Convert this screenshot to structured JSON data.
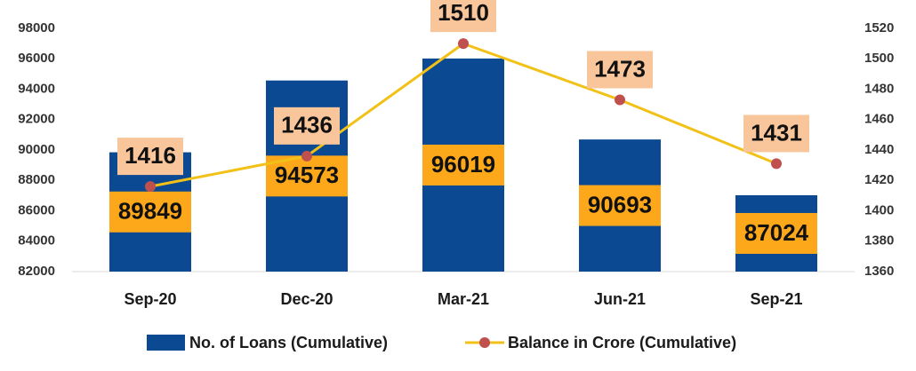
{
  "chart_data": {
    "type": "bar_line",
    "categories": [
      "Sep-20",
      "Dec-20",
      "Mar-21",
      "Jun-21",
      "Sep-21"
    ],
    "series": [
      {
        "name": "No. of Loans (Cumulative)",
        "type": "bar",
        "color": "#0b4a92",
        "values": [
          89849,
          94573,
          96019,
          90693,
          87024
        ]
      },
      {
        "name": "Balance in Crore (Cumulative)",
        "type": "line",
        "axis": "y2",
        "color": "#f2c118",
        "marker_color": "#c0504d",
        "values": [
          1416,
          1436,
          1510,
          1473,
          1431
        ]
      }
    ],
    "ylim": [
      82000,
      98000
    ],
    "yticks": [
      82000,
      84000,
      86000,
      88000,
      90000,
      92000,
      94000,
      96000,
      98000
    ],
    "y2lim": [
      1360,
      1520
    ],
    "y2ticks": [
      1360,
      1380,
      1400,
      1420,
      1440,
      1460,
      1480,
      1500,
      1520
    ],
    "grid": false,
    "legend": "bottom"
  }
}
